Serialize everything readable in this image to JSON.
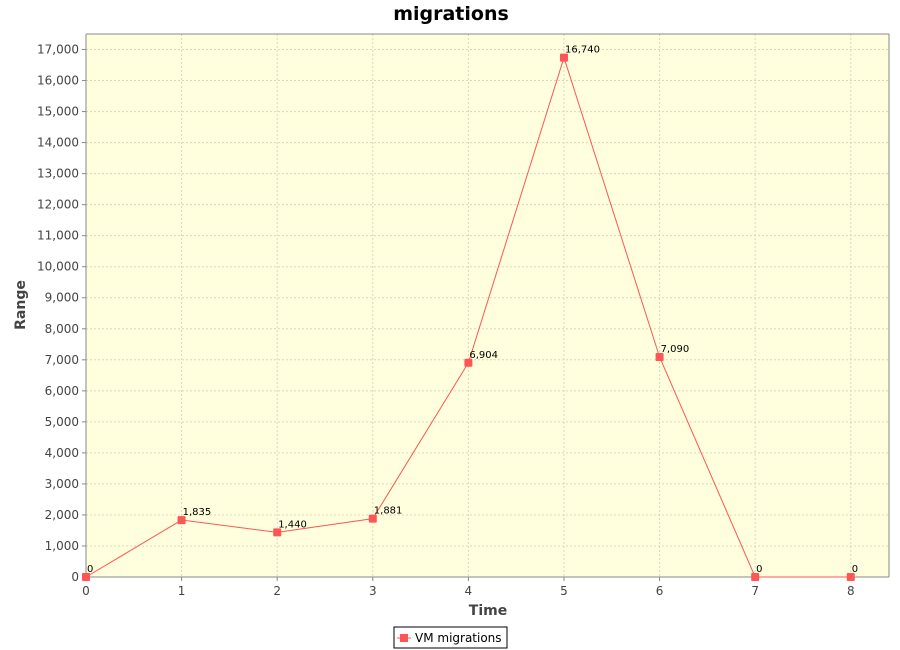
{
  "chart_data": {
    "type": "line",
    "title": "migrations",
    "xlabel": "Time",
    "ylabel": "Range",
    "x": [
      0,
      1,
      2,
      3,
      4,
      5,
      6,
      7,
      8
    ],
    "series": [
      {
        "name": "VM migrations",
        "values": [
          0,
          1835,
          1440,
          1881,
          6904,
          16740,
          7090,
          0,
          0
        ],
        "labels": [
          "0",
          "1,835",
          "1,440",
          "1,881",
          "6,904",
          "16,740",
          "7,090",
          "0",
          "0"
        ],
        "color": "#ff5555"
      }
    ],
    "xlim": [
      0,
      8.4
    ],
    "ylim": [
      0,
      17500
    ],
    "xticks": [
      "0",
      "1",
      "2",
      "3",
      "4",
      "5",
      "6",
      "7",
      "8"
    ],
    "yticks": [
      "0",
      "1,000",
      "2,000",
      "3,000",
      "4,000",
      "5,000",
      "6,000",
      "7,000",
      "8,000",
      "9,000",
      "10,000",
      "11,000",
      "12,000",
      "13,000",
      "14,000",
      "15,000",
      "16,000",
      "17,000"
    ],
    "grid": true,
    "legend_position": "bottom",
    "plot_background": "#ffffdd"
  }
}
